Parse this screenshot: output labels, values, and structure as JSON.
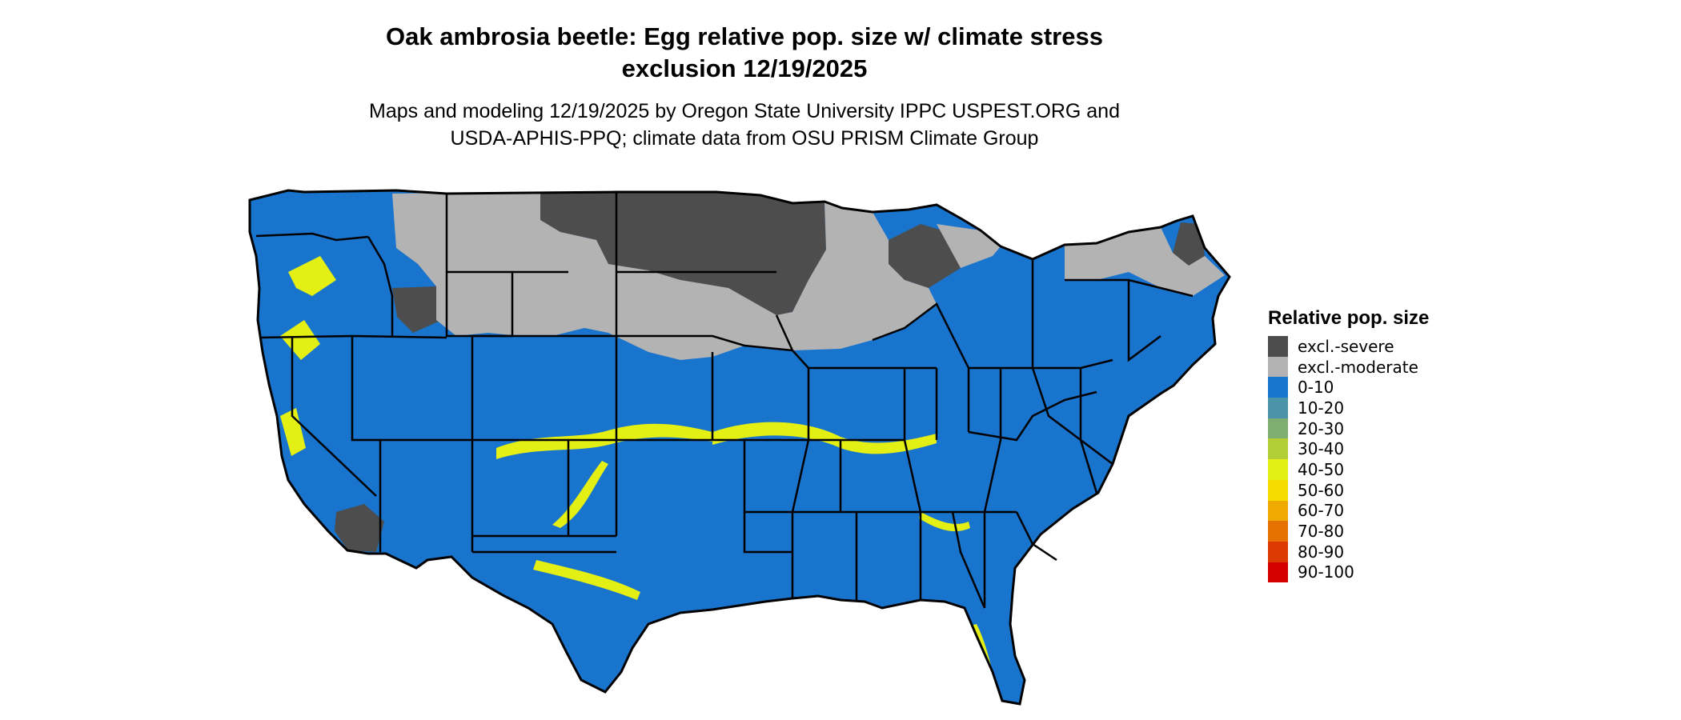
{
  "title_line1": "Oak ambrosia beetle: Egg relative pop. size w/ climate stress",
  "title_line2": "exclusion 12/19/2025",
  "subtitle_line1": "Maps and modeling 12/19/2025 by Oregon State University IPPC USPEST.ORG and",
  "subtitle_line2": "USDA-APHIS-PPQ; climate data from OSU PRISM Climate Group",
  "legend": {
    "title": "Relative pop. size",
    "items": [
      {
        "label": "excl.-severe",
        "color": "#4d4d4d"
      },
      {
        "label": "excl.-moderate",
        "color": "#b3b3b3"
      },
      {
        "label": "0-10",
        "color": "#1874cd"
      },
      {
        "label": "10-20",
        "color": "#4a93a8"
      },
      {
        "label": "20-30",
        "color": "#7eae72"
      },
      {
        "label": "30-40",
        "color": "#b2cf38"
      },
      {
        "label": "40-50",
        "color": "#e4ef14"
      },
      {
        "label": "50-60",
        "color": "#f7dc00"
      },
      {
        "label": "60-70",
        "color": "#eeaa00"
      },
      {
        "label": "70-80",
        "color": "#e57200"
      },
      {
        "label": "80-90",
        "color": "#dc3a00"
      },
      {
        "label": "90-100",
        "color": "#d40000"
      }
    ]
  },
  "map_colors": {
    "severe": "#4d4d4d",
    "moderate": "#b3b3b3",
    "low": "#1874cd",
    "mid": "#e4ef14",
    "border": "#000000"
  }
}
